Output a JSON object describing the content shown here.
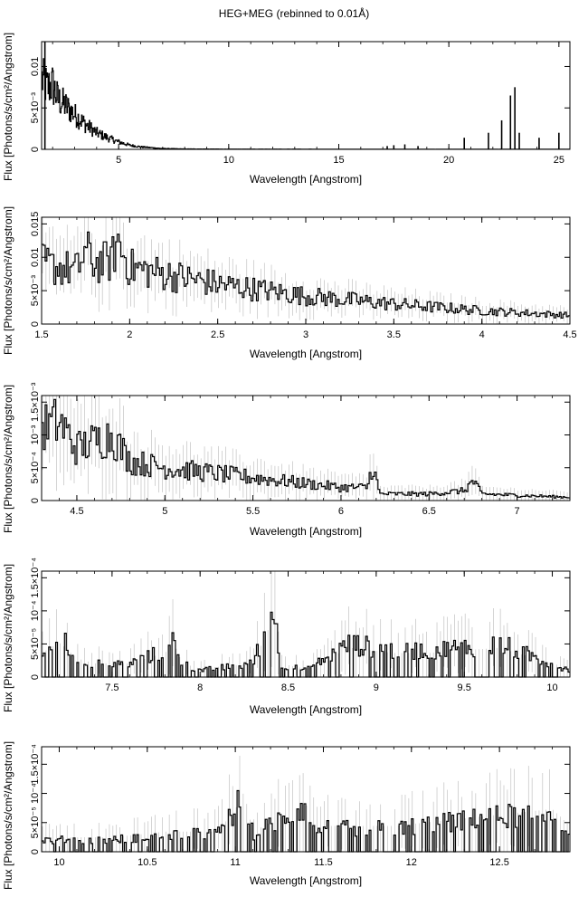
{
  "page": {
    "title": "HEG+MEG (rebinned to 0.01Å)"
  },
  "chart_data": [
    {
      "type": "line",
      "title": "HEG+MEG (rebinned to 0.01Å)",
      "xlabel": "Wavelength [Angstrom]",
      "ylabel": "Flux [Photons/s/cm²/Angstrom]",
      "xlim": [
        1.5,
        25.5
      ],
      "ylim": [
        0,
        0.013
      ],
      "xticks": [
        {
          "v": 5,
          "label": "5"
        },
        {
          "v": 10,
          "label": "10"
        },
        {
          "v": 15,
          "label": "15"
        },
        {
          "v": 20,
          "label": "20"
        },
        {
          "v": 25,
          "label": "25"
        }
      ],
      "yticks": [
        {
          "v": 0,
          "label": "0"
        },
        {
          "v": 0.005,
          "label": "5×10⁻³"
        },
        {
          "v": 0.01,
          "label": "0.01"
        }
      ],
      "series": [
        {
          "style": "histogram",
          "x": [
            1.5,
            1.75,
            2.0,
            2.25,
            2.5,
            3.0,
            3.5,
            4.0,
            4.5,
            5.0,
            5.5,
            6.0,
            7.0,
            8.0,
            10.0,
            15.0,
            20.0,
            25.5
          ],
          "y": [
            0.0085,
            0.0075,
            0.0078,
            0.006,
            0.0055,
            0.0042,
            0.003,
            0.002,
            0.0014,
            0.0009,
            0.0005,
            0.0003,
            0.0001,
            5e-05,
            3e-05,
            2e-05,
            2e-05,
            2e-05
          ]
        }
      ],
      "lines": [
        {
          "x": 1.65,
          "y": 0.013
        },
        {
          "x": 17.2,
          "y": 0.0004
        },
        {
          "x": 17.5,
          "y": 0.0005
        },
        {
          "x": 18.0,
          "y": 0.0006
        },
        {
          "x": 18.6,
          "y": 0.0004
        },
        {
          "x": 20.7,
          "y": 0.0014
        },
        {
          "x": 21.8,
          "y": 0.002
        },
        {
          "x": 22.4,
          "y": 0.0035
        },
        {
          "x": 22.8,
          "y": 0.0065
        },
        {
          "x": 23.0,
          "y": 0.0075
        },
        {
          "x": 23.2,
          "y": 0.002
        },
        {
          "x": 24.1,
          "y": 0.0014
        },
        {
          "x": 25.0,
          "y": 0.002
        }
      ]
    },
    {
      "type": "line",
      "xlabel": "Wavelength [Angstrom]",
      "ylabel": "Flux [Photons/s/cm²/Angstrom]",
      "xlim": [
        1.5,
        4.5
      ],
      "ylim": [
        0,
        0.016
      ],
      "xticks": [
        {
          "v": 1.5,
          "label": "1.5"
        },
        {
          "v": 2,
          "label": "2"
        },
        {
          "v": 2.5,
          "label": "2.5"
        },
        {
          "v": 3,
          "label": "3"
        },
        {
          "v": 3.5,
          "label": "3.5"
        },
        {
          "v": 4,
          "label": "4"
        },
        {
          "v": 4.5,
          "label": "4.5"
        }
      ],
      "yticks": [
        {
          "v": 0,
          "label": "0"
        },
        {
          "v": 0.005,
          "label": "5×10⁻³"
        },
        {
          "v": 0.01,
          "label": "0.01"
        },
        {
          "v": 0.015,
          "label": "0.015"
        }
      ],
      "series": [
        {
          "style": "histogram",
          "x": [
            1.5,
            1.6,
            1.7,
            1.75,
            1.8,
            1.9,
            1.93,
            2.0,
            2.2,
            2.5,
            3.0,
            3.5,
            4.0,
            4.5
          ],
          "y": [
            0.009,
            0.0085,
            0.008,
            0.011,
            0.009,
            0.0095,
            0.0125,
            0.0085,
            0.0075,
            0.006,
            0.0042,
            0.003,
            0.002,
            0.0013
          ]
        }
      ]
    },
    {
      "type": "line",
      "xlabel": "Wavelength [Angstrom]",
      "ylabel": "Flux [Photons/s/cm²/Angstrom]",
      "xlim": [
        4.3,
        7.3
      ],
      "ylim": [
        0,
        0.0016
      ],
      "xticks": [
        {
          "v": 4.5,
          "label": "4.5"
        },
        {
          "v": 5,
          "label": "5"
        },
        {
          "v": 5.5,
          "label": "5.5"
        },
        {
          "v": 6,
          "label": "6"
        },
        {
          "v": 6.5,
          "label": "6.5"
        },
        {
          "v": 7,
          "label": "7"
        }
      ],
      "yticks": [
        {
          "v": 0,
          "label": "0"
        },
        {
          "v": 0.0005,
          "label": "5×10⁻⁴"
        },
        {
          "v": 0.001,
          "label": "10⁻³"
        },
        {
          "v": 0.0015,
          "label": "1.5×10⁻³"
        }
      ],
      "series": [
        {
          "style": "histogram",
          "x": [
            4.3,
            4.4,
            4.5,
            4.6,
            4.7,
            4.8,
            5.0,
            5.5,
            6.0,
            6.15,
            6.18,
            6.22,
            6.5,
            6.7,
            6.75,
            6.8,
            7.3
          ],
          "y": [
            0.0011,
            0.0012,
            0.0008,
            0.0009,
            0.001,
            0.0006,
            0.0005,
            0.00035,
            0.0002,
            0.0002,
            0.00055,
            0.0001,
            0.0001,
            0.00015,
            0.0003,
            0.0001,
            5e-05
          ]
        }
      ]
    },
    {
      "type": "line",
      "xlabel": "Wavelength [Angstrom]",
      "ylabel": "Flux [Photons/s/cm²/Angstrom]",
      "xlim": [
        7.1,
        10.1
      ],
      "ylim": [
        0,
        0.00016
      ],
      "xticks": [
        {
          "v": 7.5,
          "label": "7.5"
        },
        {
          "v": 8,
          "label": "8"
        },
        {
          "v": 8.5,
          "label": "8.5"
        },
        {
          "v": 9,
          "label": "9"
        },
        {
          "v": 9.5,
          "label": "9.5"
        },
        {
          "v": 10,
          "label": "10"
        }
      ],
      "yticks": [
        {
          "v": 0,
          "label": "0"
        },
        {
          "v": 5e-05,
          "label": "5×10⁻⁵"
        },
        {
          "v": 0.0001,
          "label": "10⁻⁴"
        },
        {
          "v": 0.00015,
          "label": "1.5×10⁻⁴"
        }
      ],
      "series": [
        {
          "style": "histogram",
          "x": [
            7.1,
            7.2,
            7.3,
            7.4,
            7.6,
            7.8,
            7.85,
            7.9,
            8.0,
            8.3,
            8.42,
            8.45,
            8.6,
            8.85,
            9.1,
            9.3,
            9.7,
            10.1
          ],
          "y": [
            4e-05,
            6e-05,
            3e-05,
            2e-05,
            2e-05,
            4e-05,
            6e-05,
            2e-05,
            1e-05,
            2e-05,
            0.00011,
            2e-05,
            1e-05,
            5e-05,
            4e-05,
            4e-05,
            5e-05,
            1e-05
          ]
        }
      ]
    },
    {
      "type": "line",
      "xlabel": "Wavelength [Angstrom]",
      "ylabel": "Flux [Photons/s/cm²/Angstrom]",
      "xlim": [
        9.9,
        12.9
      ],
      "ylim": [
        0,
        0.00018
      ],
      "xticks": [
        {
          "v": 10,
          "label": "10"
        },
        {
          "v": 10.5,
          "label": "10.5"
        },
        {
          "v": 11,
          "label": "11"
        },
        {
          "v": 11.5,
          "label": "11.5"
        },
        {
          "v": 12,
          "label": "12"
        },
        {
          "v": 12.5,
          "label": "12.5"
        }
      ],
      "yticks": [
        {
          "v": 0,
          "label": "0"
        },
        {
          "v": 5e-05,
          "label": "5×10⁻⁵"
        },
        {
          "v": 0.0001,
          "label": "10⁻⁴"
        },
        {
          "v": 0.00015,
          "label": "1.5×10⁻⁴"
        }
      ],
      "series": [
        {
          "style": "histogram",
          "x": [
            9.9,
            10.3,
            10.6,
            10.9,
            11.0,
            11.05,
            11.1,
            11.4,
            11.45,
            11.9,
            12.2,
            12.5,
            12.8,
            12.9
          ],
          "y": [
            2e-05,
            2e-05,
            3e-05,
            3e-05,
            7e-05,
            0.0001,
            3e-05,
            8e-05,
            4e-05,
            4e-05,
            5e-05,
            6e-05,
            7e-05,
            4e-05
          ]
        }
      ]
    }
  ]
}
